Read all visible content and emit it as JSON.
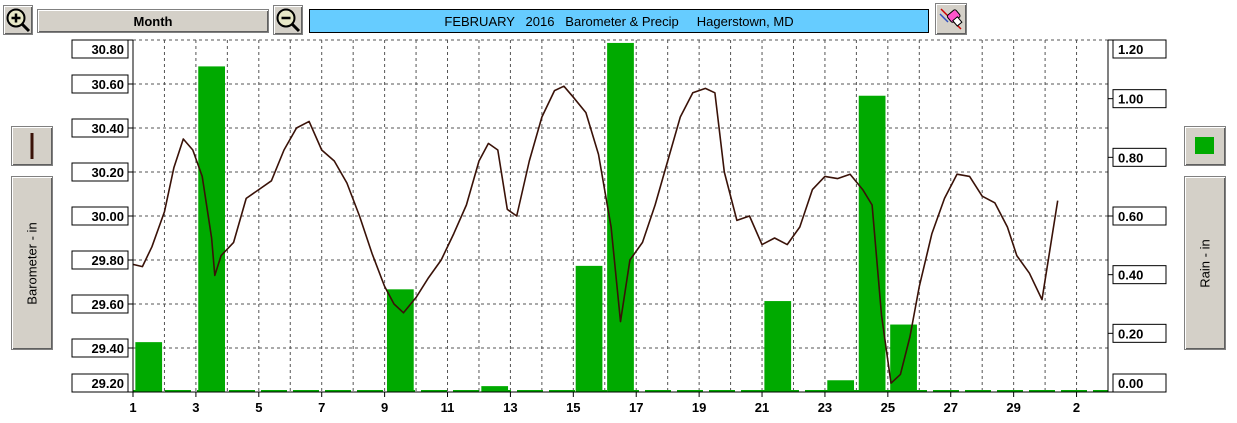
{
  "toolbar": {
    "zoom_in_icon": "magnifier-plus-icon",
    "period_label": "Month",
    "zoom_out_icon": "magnifier-minus-icon",
    "title": "FEBRUARY   2016   Barometer & Precip     Hagerstown, MD",
    "tool_icon": "pencil-eraser-icon",
    "title_color": "#66ccff"
  },
  "left_panel": {
    "series_swatch_icon": "line-swatch-icon",
    "axis_label": "Barometer - in",
    "line_color": "#3a1208"
  },
  "right_panel": {
    "series_swatch_icon": "bar-swatch-icon",
    "axis_label": "Rain - in",
    "bar_color": "#00aa00"
  },
  "chart_data": {
    "type": "bar+line",
    "y_left_ticks": [
      "30.80",
      "30.60",
      "30.40",
      "30.20",
      "30.00",
      "29.80",
      "29.60",
      "29.40",
      "29.20"
    ],
    "y_right_ticks": [
      "1.20",
      "1.00",
      "0.80",
      "0.60",
      "0.40",
      "0.20",
      "0.00"
    ],
    "x_ticks": [
      "1",
      "3",
      "5",
      "7",
      "9",
      "11",
      "13",
      "15",
      "17",
      "19",
      "21",
      "23",
      "25",
      "27",
      "29",
      "2"
    ],
    "ylim_left": [
      29.2,
      30.8
    ],
    "ylim_right": [
      0.0,
      1.2
    ],
    "xlim_days": [
      1,
      32
    ],
    "grid": true,
    "series": [
      {
        "name": "Barometer - in",
        "axis": "left",
        "type": "line",
        "color": "#3a1208",
        "x": [
          1.0,
          1.3,
          1.6,
          2.0,
          2.3,
          2.6,
          2.9,
          3.2,
          3.5,
          3.6,
          3.8,
          4.2,
          4.6,
          5.0,
          5.4,
          5.8,
          6.2,
          6.6,
          7.0,
          7.4,
          7.8,
          8.2,
          8.6,
          9.0,
          9.3,
          9.6,
          10.0,
          10.4,
          10.8,
          11.2,
          11.6,
          12.0,
          12.3,
          12.6,
          12.9,
          13.2,
          13.6,
          14.0,
          14.4,
          14.7,
          15.0,
          15.4,
          15.8,
          16.2,
          16.5,
          16.8,
          17.2,
          17.6,
          18.0,
          18.4,
          18.8,
          19.2,
          19.5,
          19.8,
          20.2,
          20.6,
          21.0,
          21.4,
          21.8,
          22.2,
          22.6,
          23.0,
          23.4,
          23.8,
          24.2,
          24.5,
          24.8,
          25.1,
          25.4,
          25.7,
          26.0,
          26.4,
          26.8,
          27.2,
          27.6,
          28.0,
          28.4,
          28.8,
          29.1,
          29.5,
          29.9,
          30.4
        ],
        "y": [
          29.78,
          29.77,
          29.86,
          30.02,
          30.22,
          30.35,
          30.3,
          30.18,
          29.9,
          29.73,
          29.82,
          29.88,
          30.08,
          30.12,
          30.16,
          30.3,
          30.4,
          30.43,
          30.3,
          30.25,
          30.15,
          30.0,
          29.83,
          29.68,
          29.6,
          29.56,
          29.63,
          29.72,
          29.8,
          29.92,
          30.05,
          30.25,
          30.33,
          30.3,
          30.03,
          30.0,
          30.25,
          30.45,
          30.57,
          30.59,
          30.54,
          30.47,
          30.28,
          29.95,
          29.52,
          29.8,
          29.88,
          30.05,
          30.25,
          30.45,
          30.56,
          30.58,
          30.56,
          30.2,
          29.98,
          30.0,
          29.87,
          29.9,
          29.87,
          29.95,
          30.12,
          30.18,
          30.17,
          30.19,
          30.12,
          30.05,
          29.55,
          29.24,
          29.28,
          29.45,
          29.68,
          29.92,
          30.08,
          30.19,
          30.18,
          30.09,
          30.06,
          29.95,
          29.82,
          29.74,
          29.62,
          30.07
        ]
      },
      {
        "name": "Rain - in",
        "axis": "right",
        "type": "bar",
        "color": "#00aa00",
        "x": [
          1.5,
          3.5,
          9.5,
          12.5,
          15.5,
          16.5,
          21.5,
          23.5,
          24.5,
          25.5
        ],
        "values": [
          0.17,
          1.11,
          0.35,
          0.02,
          0.43,
          1.19,
          0.31,
          0.04,
          1.01,
          0.23
        ]
      }
    ]
  }
}
